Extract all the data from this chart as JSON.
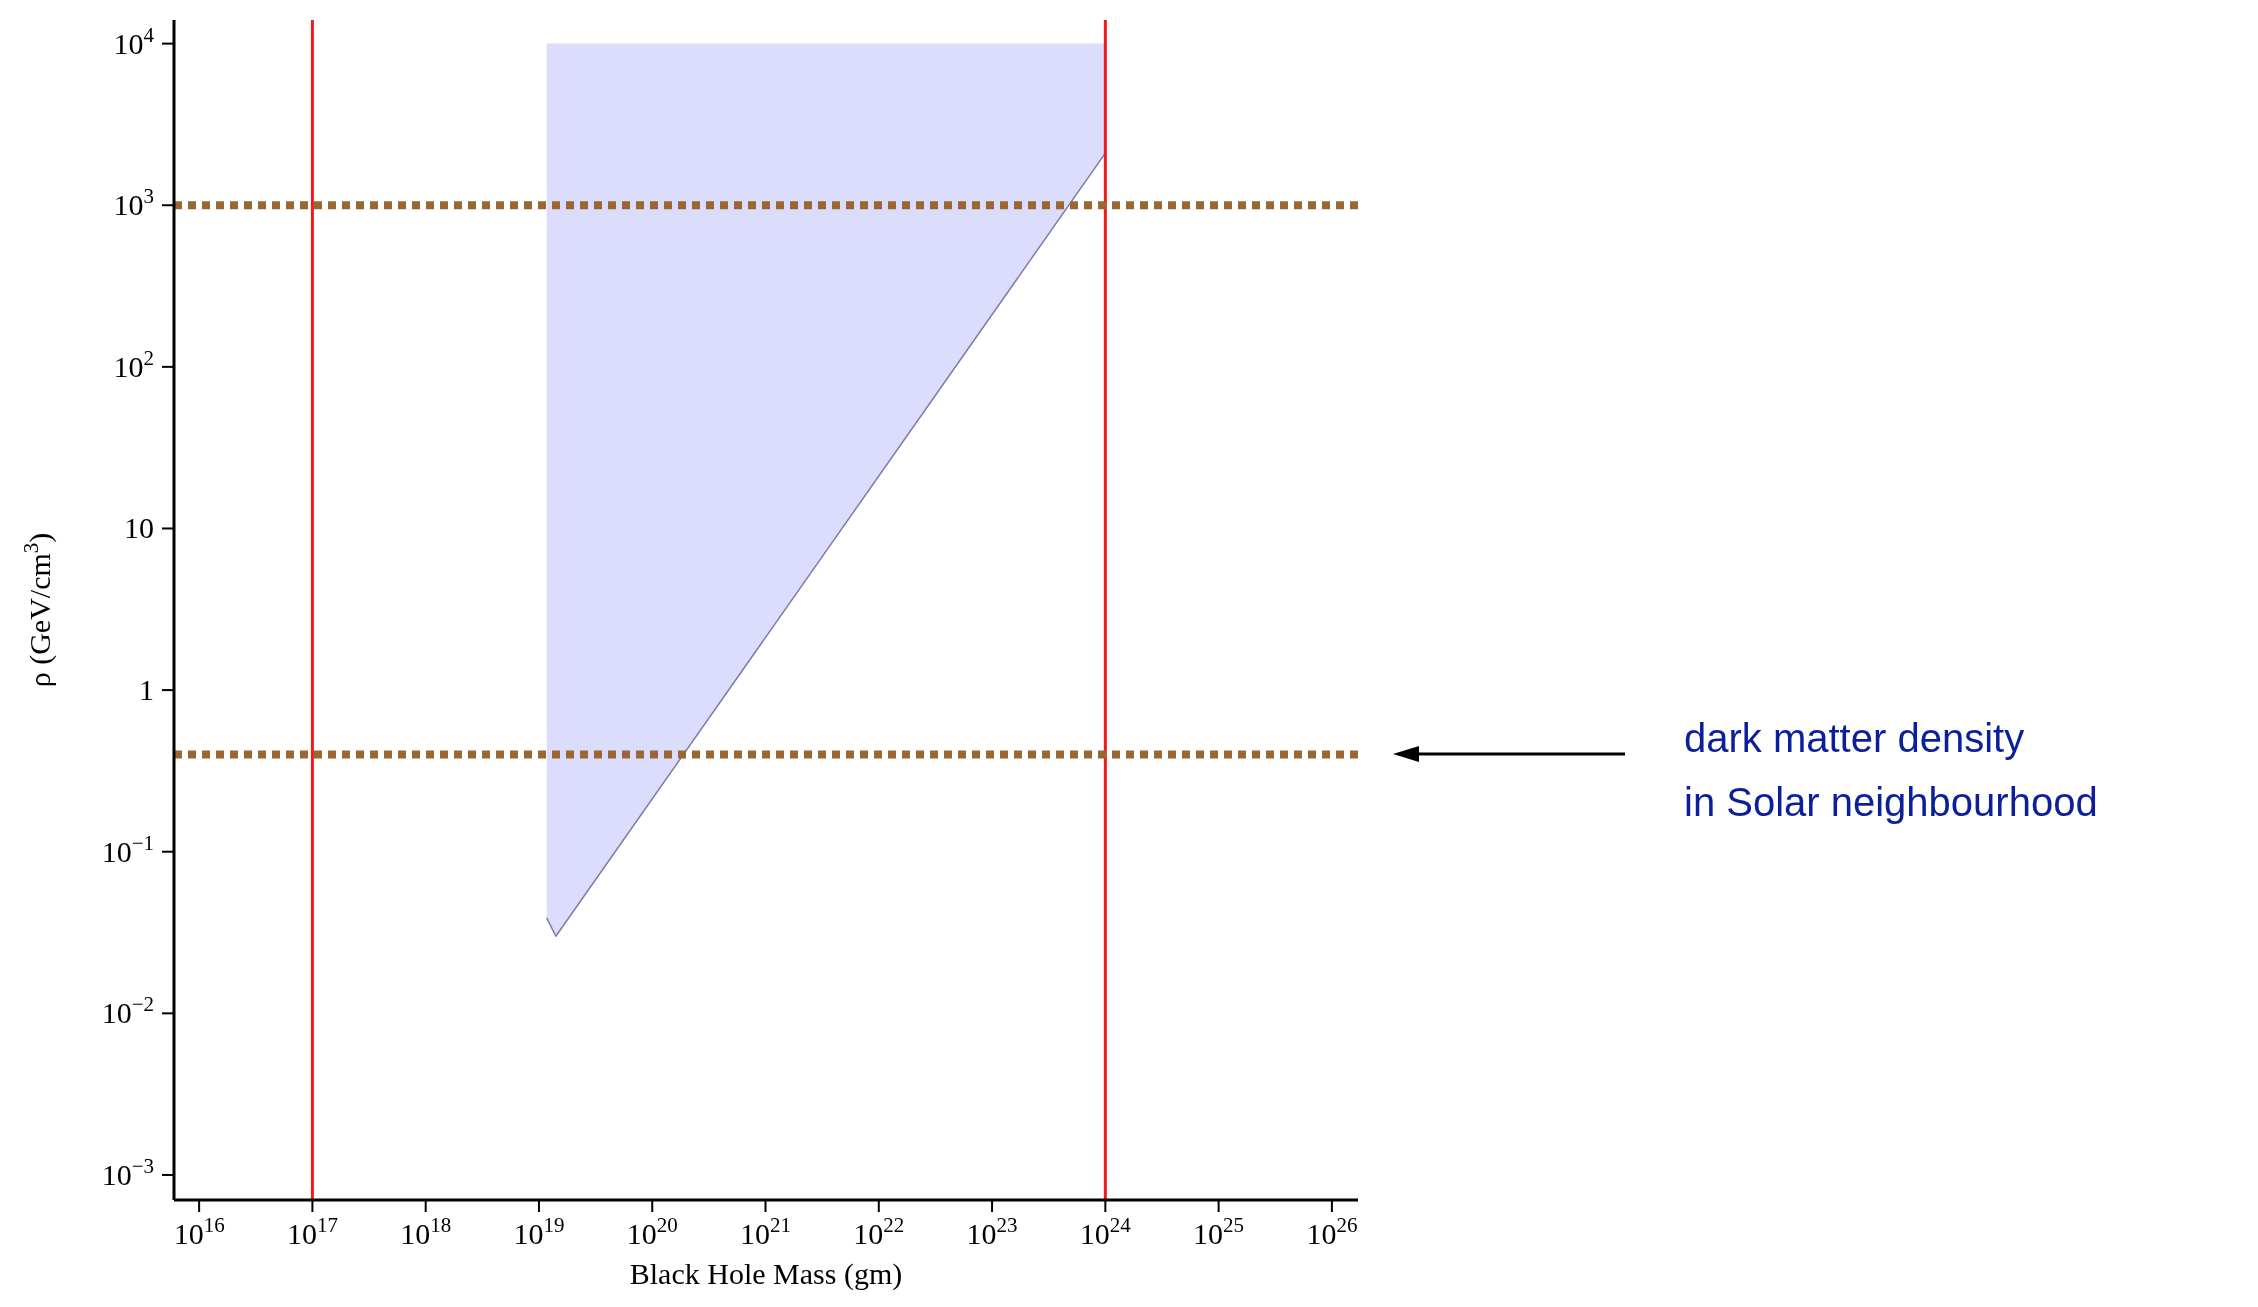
{
  "chart_data": {
    "type": "line",
    "xlabel": "Black Hole Mass (gm)",
    "ylabel": "ρ (GeV/cm$^{3}$)",
    "log": "xy",
    "grid": false,
    "legend": false,
    "xlim": [
      6000000000000000.0,
      1.7e+26
    ],
    "ylim": [
      0.0007,
      14000.0
    ],
    "xticks": [
      {
        "value": 1e+16,
        "label": "10$^{16}$"
      },
      {
        "value": 1e+17,
        "label": "10$^{17}$"
      },
      {
        "value": 1e+18,
        "label": "10$^{18}$"
      },
      {
        "value": 1e+19,
        "label": "10$^{19}$"
      },
      {
        "value": 1e+20,
        "label": "10$^{20}$"
      },
      {
        "value": 1e+21,
        "label": "10$^{21}$"
      },
      {
        "value": 1e+22,
        "label": "10$^{22}$"
      },
      {
        "value": 1e+23,
        "label": "10$^{23}$"
      },
      {
        "value": 1e+24,
        "label": "10$^{24}$"
      },
      {
        "value": 1e+25,
        "label": "10$^{25}$"
      },
      {
        "value": 1e+26,
        "label": "10$^{26}$"
      }
    ],
    "yticks": [
      {
        "value": 0.001,
        "label": "10$^{−3}$"
      },
      {
        "value": 0.01,
        "label": "10$^{−2}$"
      },
      {
        "value": 0.1,
        "label": "10$^{−1}$"
      },
      1,
      10,
      {
        "value": 100,
        "label": "10$^{2}$"
      },
      {
        "value": 1000,
        "label": "10$^{3}$"
      },
      {
        "value": 10000,
        "label": "10$^{4}$"
      }
    ],
    "series": [
      {
        "color": "#7c7ca8",
        "x": [
          1.17e+19,
          1.41e+19,
          1e+24
        ],
        "values": [
          0.039,
          0.03,
          2100
        ],
        "lower": [
          0.039,
          0.03,
          2100
        ],
        "upper": [
          10000,
          10000,
          10000
        ]
      }
    ],
    "ref_lines": [
      {
        "axis": "x",
        "value": 1e+17,
        "color": "#ee1c1c",
        "line_style": "solid"
      },
      {
        "axis": "x",
        "value": 1e+24,
        "color": "#ee1c1c",
        "line_style": "solid"
      },
      {
        "axis": "y",
        "value": 1000,
        "color": "#9a6632",
        "line_style": "dotted"
      },
      {
        "axis": "y",
        "value": 0.4,
        "color": "#9a6632",
        "line_style": "dotted"
      }
    ],
    "annotations": [
      "dark matter density\nin Solar neighbourhood"
    ]
  }
}
